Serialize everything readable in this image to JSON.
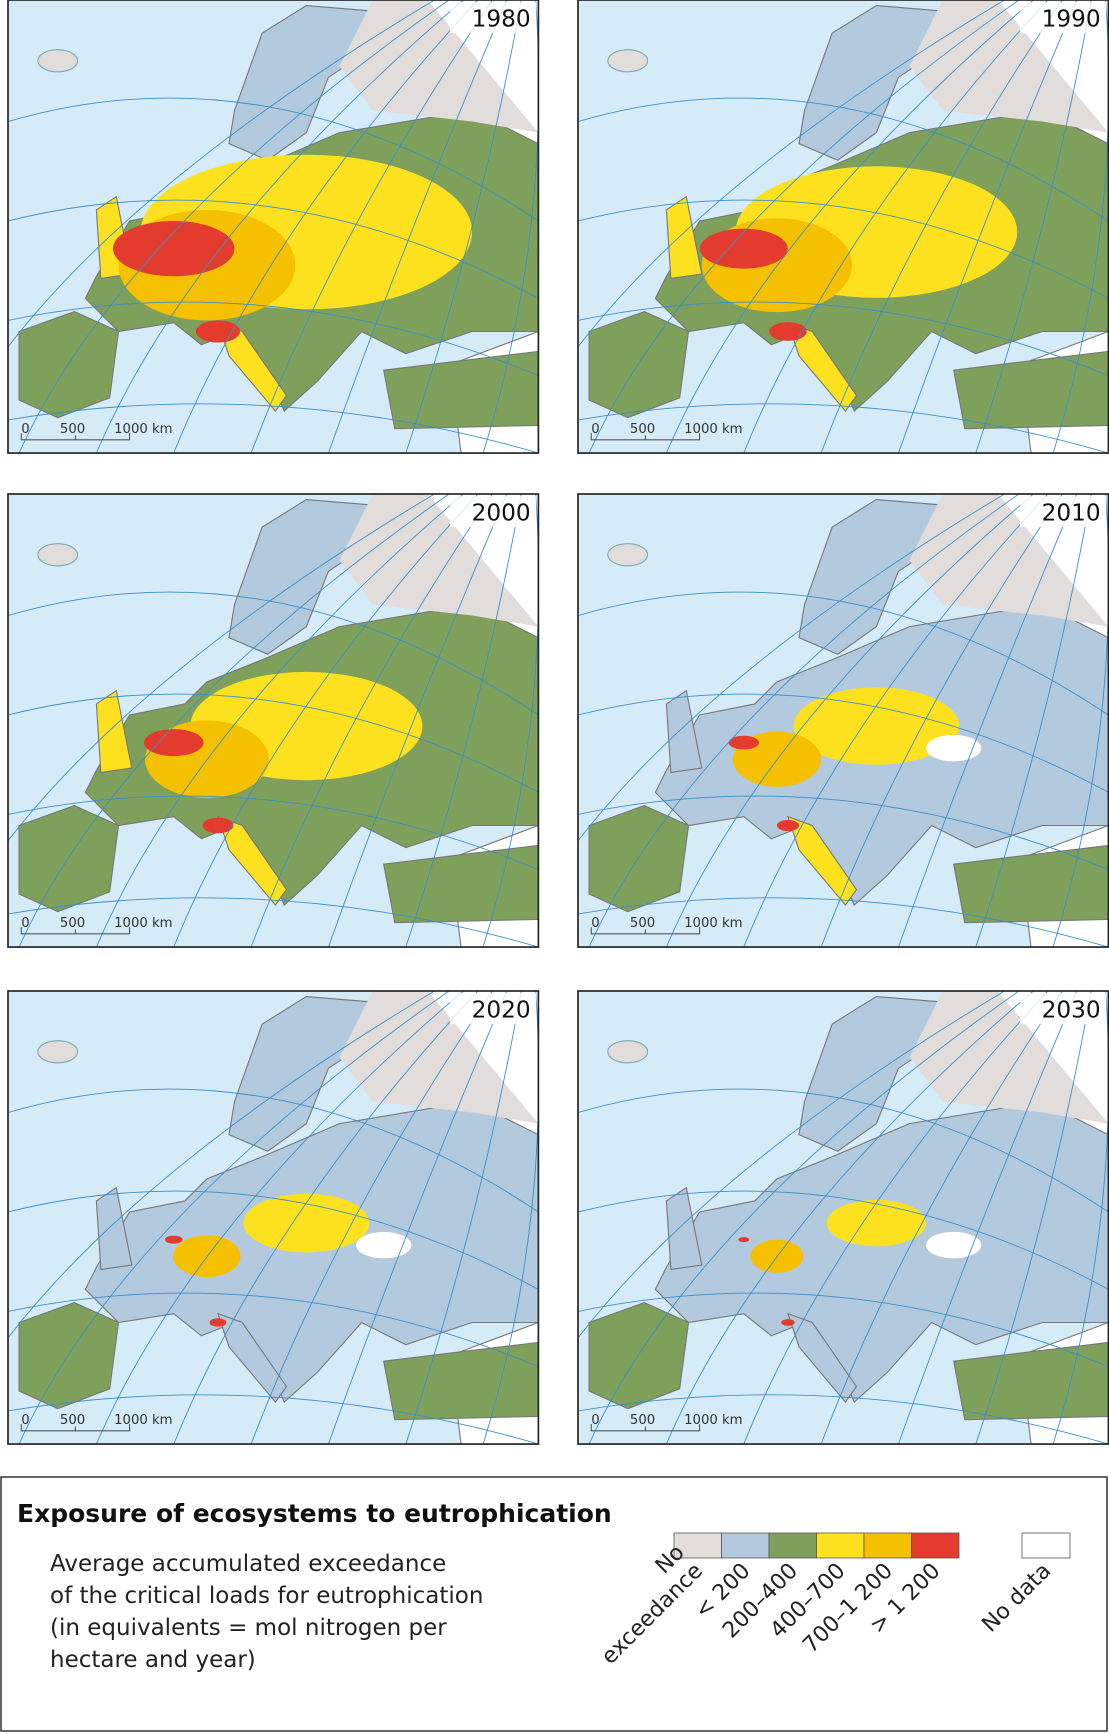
{
  "panels": [
    {
      "year": "1980"
    },
    {
      "year": "1990"
    },
    {
      "year": "2000"
    },
    {
      "year": "2010"
    },
    {
      "year": "2020"
    },
    {
      "year": "2030"
    }
  ],
  "scale_bar": {
    "labels": [
      "0",
      "500",
      "1000 km"
    ]
  },
  "legend": {
    "title": "Exposure of ecosystems to eutrophication",
    "description": [
      "Average accumulated exceedance",
      "of the critical loads for eutrophication",
      "(in equivalents = mol nitrogen per",
      "hectare and year)"
    ],
    "classes": [
      {
        "label": [
          "No",
          "exceedance"
        ],
        "color": "#e2dcdb"
      },
      {
        "label": [
          "< 200"
        ],
        "color": "#b3c9de"
      },
      {
        "label": [
          "200–400"
        ],
        "color": "#7fa05a"
      },
      {
        "label": [
          "400–700"
        ],
        "color": "#fde11f"
      },
      {
        "label": [
          "700–1 200"
        ],
        "color": "#f5c000"
      },
      {
        "label": [
          "> 1 200"
        ],
        "color": "#e33b2e"
      }
    ],
    "no_data": {
      "label": "No data",
      "color": "#ffffff"
    }
  }
}
